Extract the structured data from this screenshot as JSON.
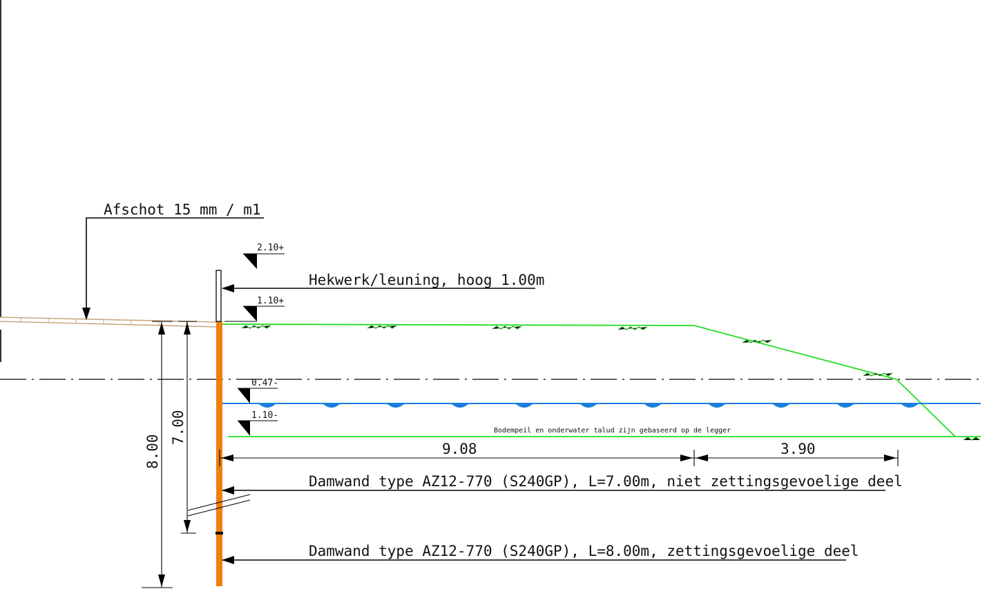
{
  "annotations": {
    "slope": "Afschot 15 mm / m1",
    "railing": "Hekwerk/leuning, hoog 1.00m",
    "wall_short": "Damwand type AZ12-770 (S240GP), L=7.00m, niet zettingsgevoelige deel",
    "wall_long": "Damwand type AZ12-770 (S240GP), L=8.00m, zettingsgevoelige deel",
    "bottom_note": "Bodempeil en onderwater talud zijn gebaseerd op de legger"
  },
  "levels": {
    "railing_top": "2.10+",
    "deck": "1.10+",
    "water": "0.47-",
    "bottom": "1.10-"
  },
  "dimensions": {
    "length_8": "8.00",
    "length_7": "7.00",
    "width_main": "9.08",
    "width_slope": "3.90"
  },
  "colors": {
    "sheet_pile": "#f07f0f",
    "ground": "#22dd22",
    "water": "#1a7ee0",
    "pavement": "#c8a882",
    "lines": "#000000"
  }
}
